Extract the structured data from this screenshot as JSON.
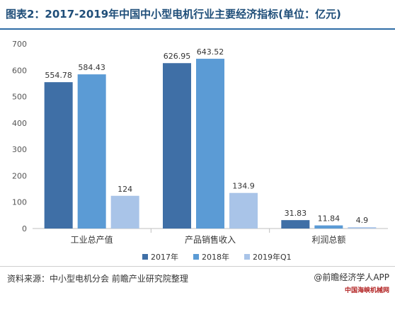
{
  "title": "图表2：2017-2019年中国中小型电机行业主要经济指标(单位：亿元)",
  "source": "资料来源：中小型电机分会 前瞻产业研究院整理",
  "brand": "@前瞻经济学人APP",
  "stamp": "中国海峡机械网",
  "colors": {
    "series_2017": "#3f6fa6",
    "series_2018": "#5b9bd5",
    "series_2019": "#a9c4e8",
    "title": "#1f4e79",
    "axis": "#bfbfbf"
  },
  "chart_data": {
    "type": "bar",
    "categories": [
      "工业总产值",
      "产品销售收入",
      "利润总额"
    ],
    "series": [
      {
        "name": "2017年",
        "values": [
          554.78,
          626.95,
          31.83
        ],
        "labels": [
          "554.78",
          "626.95",
          "31.83"
        ]
      },
      {
        "name": "2018年",
        "values": [
          584.43,
          643.52,
          11.84
        ],
        "labels": [
          "584.43",
          "643.52",
          "11.84"
        ]
      },
      {
        "name": "2019年Q1",
        "values": [
          124,
          134.9,
          4.9
        ],
        "labels": [
          "124",
          "134.9",
          "4.9"
        ]
      }
    ],
    "yticks": [
      "0",
      "100",
      "200",
      "300",
      "400",
      "500",
      "600",
      "700"
    ],
    "ylim": [
      0,
      700
    ],
    "grid": false,
    "legend_position": "bottom"
  }
}
